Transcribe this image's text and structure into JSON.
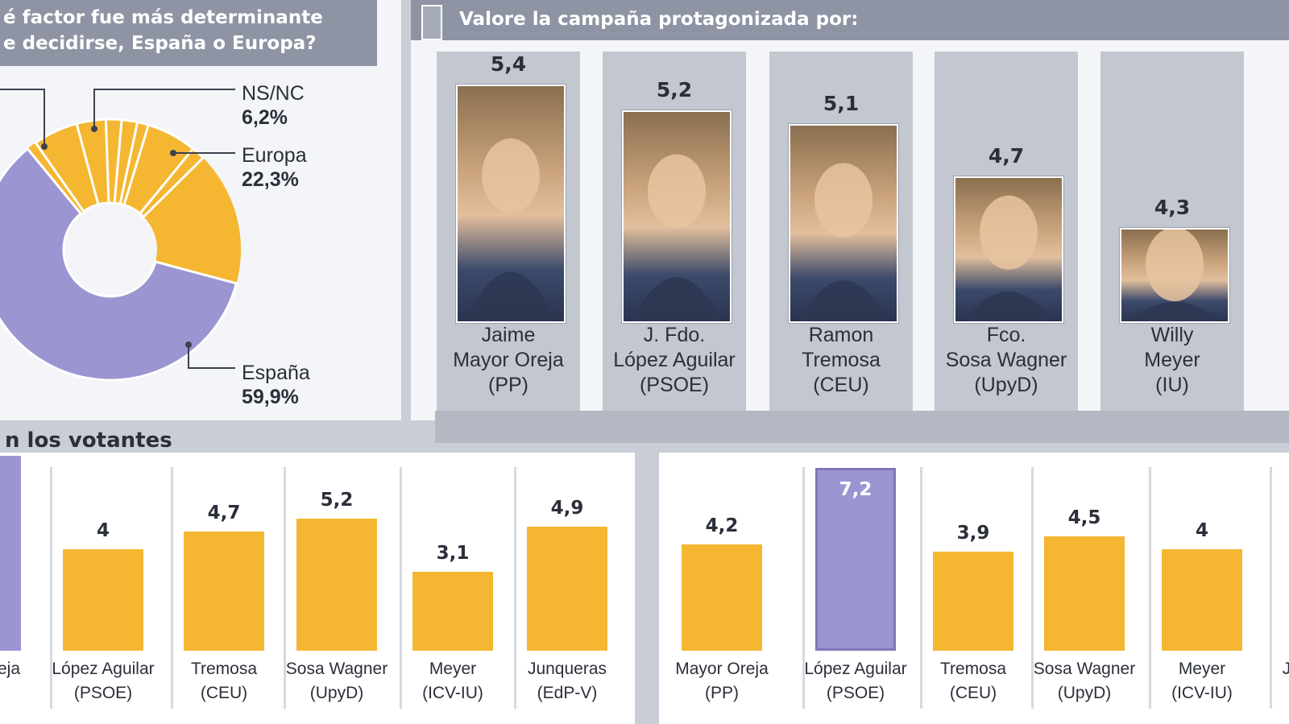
{
  "colors": {
    "europa": "#f5b731",
    "espana": "#9b95d2",
    "bar": "#f5b731",
    "bar_highlight": "#9b95d2"
  },
  "left_panel": {
    "title_line1": "é factor fue más determinante",
    "title_line2": "e decidirse, España o Europa?"
  },
  "right_panel": {
    "title": "Valore la campaña protagonizada por:"
  },
  "bottom": {
    "section_label": "n los votantes"
  },
  "chart_data": [
    {
      "type": "pie",
      "title": "é factor fue más determinante e decidirse, España o Europa?",
      "slices": [
        {
          "label": "España",
          "value": 59.9,
          "value_text": "59,9%",
          "color": "#9b95d2"
        },
        {
          "label": "Europa",
          "value": 22.3,
          "value_text": "22,3%",
          "color": "#f5b731"
        },
        {
          "label": "NS/NC",
          "value": 6.2,
          "value_text": "6,2%",
          "color": "#f5b731"
        }
      ]
    },
    {
      "type": "bar",
      "title": "Valore la campaña protagonizada por:",
      "categories": [
        {
          "line1": "Jaime",
          "line2": "Mayor Oreja",
          "party": "(PP)",
          "photo_icon": "portrait-icon"
        },
        {
          "line1": "J. Fdo.",
          "line2": "López Aguilar",
          "party": "(PSOE)",
          "photo_icon": "portrait-icon"
        },
        {
          "line1": "Ramon",
          "line2": "Tremosa",
          "party": "(CEU)",
          "photo_icon": "portrait-icon"
        },
        {
          "line1": "Fco.",
          "line2": "Sosa Wagner",
          "party": "(UpyD)",
          "photo_icon": "portrait-icon"
        },
        {
          "line1": "Willy",
          "line2": "Meyer",
          "party": "(IU)",
          "photo_icon": "portrait-icon"
        }
      ],
      "values": [
        5.4,
        5.2,
        5.1,
        4.7,
        4.3
      ],
      "value_labels": [
        "5,4",
        "5,2",
        "5,1",
        "4,7",
        "4,3"
      ]
    },
    {
      "type": "bar",
      "categories": [
        {
          "line1": "eja",
          "line2": ""
        },
        {
          "line1": "López Aguilar",
          "line2": "(PSOE)"
        },
        {
          "line1": "Tremosa",
          "line2": "(CEU)"
        },
        {
          "line1": "Sosa Wagner",
          "line2": "(UpyD)"
        },
        {
          "line1": "Meyer",
          "line2": "(ICV-IU)"
        },
        {
          "line1": "Junqueras",
          "line2": "(EdP-V)"
        }
      ],
      "values": [
        null,
        4,
        4.7,
        5.2,
        3.1,
        4.9
      ],
      "value_labels": [
        "",
        "4",
        "4,7",
        "5,2",
        "3,1",
        "4,9"
      ],
      "highlight": [
        true,
        false,
        false,
        false,
        false,
        false
      ]
    },
    {
      "type": "bar",
      "categories": [
        {
          "line1": "Mayor Oreja",
          "line2": "(PP)"
        },
        {
          "line1": "López Aguilar",
          "line2": "(PSOE)"
        },
        {
          "line1": "Tremosa",
          "line2": "(CEU)"
        },
        {
          "line1": "Sosa Wagner",
          "line2": "(UpyD)"
        },
        {
          "line1": "Meyer",
          "line2": "(ICV-IU)"
        },
        {
          "line1": "J",
          "line2": ""
        }
      ],
      "values": [
        4.2,
        7.2,
        3.9,
        4.5,
        4,
        null
      ],
      "value_labels": [
        "4,2",
        "7,2",
        "3,9",
        "4,5",
        "4",
        ""
      ],
      "highlight": [
        false,
        true,
        false,
        false,
        false,
        false
      ]
    }
  ]
}
